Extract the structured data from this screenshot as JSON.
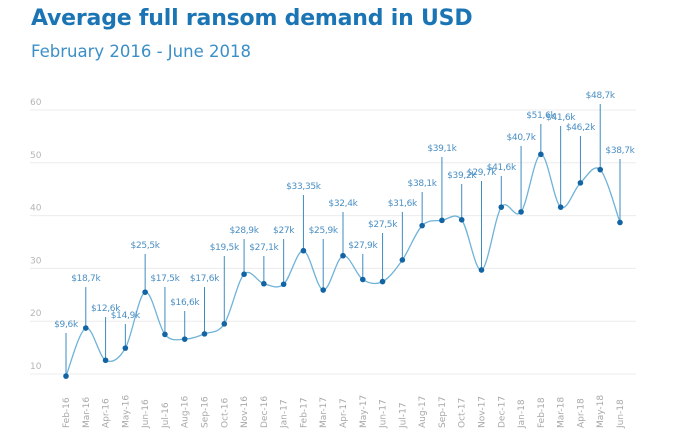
{
  "header": {
    "title": "Average full ransom demand in USD",
    "subtitle": "February 2016 - June 2018"
  },
  "colors": {
    "title": "#1b75b5",
    "line": "#6fb3d9",
    "point": "#1264a3",
    "leader": "#3e8bc0",
    "grid": "#ececec"
  },
  "chart_data": {
    "type": "line",
    "title": "Average full ransom demand in USD",
    "subtitle": "February 2016 - June 2018",
    "xlabel": "",
    "ylabel": "",
    "ylim": [
      10,
      60
    ],
    "yticks": [
      "10",
      "20",
      "30",
      "40",
      "50",
      "60"
    ],
    "grid": true,
    "smooth": true,
    "categories": [
      "Feb-16",
      "Mar-16",
      "Apr-16",
      "May-16",
      "Jun-16",
      "Jul-16",
      "Aug-16",
      "Sep-16",
      "Oct-16",
      "Nov-16",
      "Dec-16",
      "Jan-17",
      "Feb-17",
      "Mar-17",
      "Apr-17",
      "May-17",
      "Jun-17",
      "Jul-17",
      "Aug-17",
      "Sep-17",
      "Oct-17",
      "Nov-17",
      "Dec-17",
      "Jan-18",
      "Feb-18",
      "Mar-18",
      "Apr-18",
      "May-18",
      "Jun-18"
    ],
    "values": [
      9.6,
      18.7,
      12.6,
      14.9,
      25.5,
      17.5,
      16.6,
      17.6,
      19.5,
      28.9,
      27.1,
      27,
      33.35,
      25.9,
      32.4,
      27.9,
      27.5,
      31.6,
      38.1,
      39.1,
      39.2,
      29.7,
      41.6,
      40.7,
      51.6,
      41.6,
      46.2,
      48.7,
      38.7
    ],
    "data_labels": [
      "$9,6k",
      "$18,7k",
      "$12,6k",
      "$14,9k",
      "$25,5k",
      "$17,5k",
      "$16,6k",
      "$17,6k",
      "$19,5k",
      "$28,9k",
      "$27,1k",
      "$27k",
      "$33,35k",
      "$25,9k",
      "$32,4k",
      "$27,9k",
      "$27,5k",
      "$31,6k",
      "$38,1k",
      "$39,1k",
      "$39,2k",
      "$29,7k",
      "$41,6k",
      "$40,7k",
      "$51,6k",
      "$41,6k",
      "$46,2k",
      "$48,7k",
      "$38,7k"
    ]
  }
}
